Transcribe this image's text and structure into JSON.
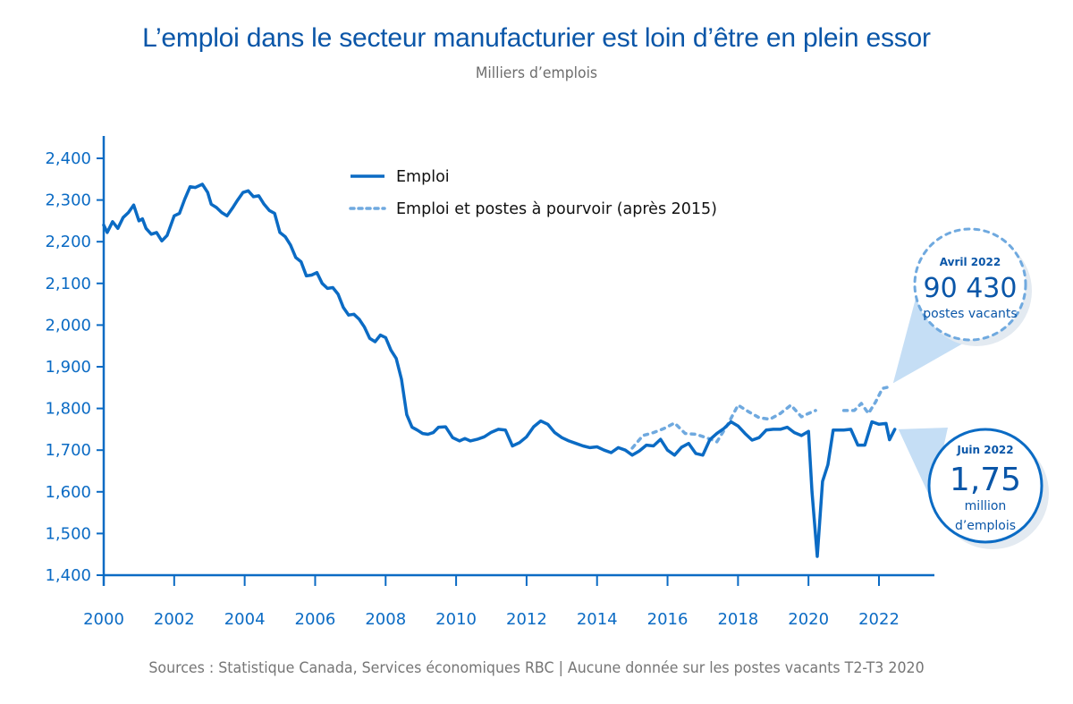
{
  "header": {
    "title": "L’emploi dans le secteur manufacturier est loin d’être en plein essor",
    "subtitle": "Milliers d’emplois"
  },
  "footer": {
    "source": "Sources : Statistique Canada, Services économiques RBC | Aucune donnée sur les postes vacants T2-T3 2020"
  },
  "colors": {
    "primary": "#0b6bc4",
    "dotted": "#6fa9df",
    "callout_fill": "#c5def5",
    "title": "#0a56a8"
  },
  "callouts": [
    {
      "id": "vacancies",
      "label": "Avril 2022",
      "value": "90 430",
      "caption": "postes vacants",
      "caption2": ""
    },
    {
      "id": "employment",
      "label": "Juin 2022",
      "value": "1,75",
      "caption": "million",
      "caption2": "d’emplois"
    }
  ],
  "chart_data": {
    "type": "line",
    "title": "L’emploi dans le secteur manufacturier est loin d’être en plein essor",
    "subtitle": "Milliers d’emplois",
    "xlabel": "",
    "ylabel": "Milliers d’emplois",
    "xlim": [
      2000,
      2023.8
    ],
    "ylim": [
      1400,
      2450
    ],
    "grid": false,
    "legend_position": "top-center",
    "x_ticks": [
      2000,
      2002,
      2004,
      2006,
      2008,
      2010,
      2012,
      2014,
      2016,
      2018,
      2020,
      2022
    ],
    "x_tick_labels": [
      "2000",
      "2002",
      "2004",
      "2006",
      "2008",
      "2010",
      "2012",
      "2014",
      "2016",
      "2018",
      "2020",
      "2022"
    ],
    "y_ticks": [
      1400,
      1500,
      1600,
      1700,
      1800,
      1900,
      2000,
      2100,
      2200,
      2300,
      2400
    ],
    "y_tick_labels": [
      "1,400",
      "1,500",
      "1,600",
      "1,700",
      "1,800",
      "1,900",
      "2,000",
      "2,100",
      "2,200",
      "2,300",
      "2,400"
    ],
    "series": [
      {
        "name": "Emploi",
        "style": "solid",
        "x": [
          2000.0,
          2000.1,
          2000.25,
          2000.4,
          2000.55,
          2000.7,
          2000.85,
          2001.0,
          2001.1,
          2001.2,
          2001.35,
          2001.5,
          2001.65,
          2001.8,
          2002.0,
          2002.15,
          2002.3,
          2002.45,
          2002.6,
          2002.8,
          2002.95,
          2003.05,
          2003.2,
          2003.35,
          2003.5,
          2003.65,
          2003.8,
          2003.95,
          2004.1,
          2004.25,
          2004.4,
          2004.55,
          2004.7,
          2004.85,
          2005.0,
          2005.15,
          2005.3,
          2005.45,
          2005.6,
          2005.75,
          2005.9,
          2006.05,
          2006.2,
          2006.35,
          2006.5,
          2006.65,
          2006.8,
          2006.95,
          2007.1,
          2007.25,
          2007.4,
          2007.55,
          2007.7,
          2007.85,
          2008.0,
          2008.15,
          2008.3,
          2008.45,
          2008.6,
          2008.75,
          2008.9,
          2009.05,
          2009.2,
          2009.35,
          2009.5,
          2009.7,
          2009.9,
          2010.1,
          2010.25,
          2010.4,
          2010.6,
          2010.8,
          2011.0,
          2011.2,
          2011.4,
          2011.6,
          2011.8,
          2012.0,
          2012.2,
          2012.4,
          2012.6,
          2012.8,
          2013.0,
          2013.2,
          2013.4,
          2013.6,
          2013.8,
          2014.0,
          2014.2,
          2014.4,
          2014.6,
          2014.8,
          2015.0,
          2015.2,
          2015.4,
          2015.6,
          2015.8,
          2016.0,
          2016.2,
          2016.4,
          2016.6,
          2016.8,
          2017.0,
          2017.2,
          2017.4,
          2017.6,
          2017.8,
          2018.0,
          2018.2,
          2018.4,
          2018.6,
          2018.8,
          2019.0,
          2019.2,
          2019.4,
          2019.6,
          2019.8,
          2020.0,
          2020.1,
          2020.25,
          2020.4,
          2020.55,
          2020.7,
          2020.85,
          2021.0,
          2021.2,
          2021.4,
          2021.6,
          2021.8,
          2022.0,
          2022.2,
          2022.3,
          2022.45
        ],
        "values": [
          2240,
          2222,
          2248,
          2232,
          2258,
          2270,
          2288,
          2250,
          2255,
          2232,
          2218,
          2222,
          2202,
          2215,
          2262,
          2268,
          2302,
          2332,
          2330,
          2338,
          2318,
          2290,
          2282,
          2270,
          2262,
          2280,
          2300,
          2318,
          2322,
          2308,
          2310,
          2290,
          2275,
          2268,
          2222,
          2212,
          2192,
          2162,
          2152,
          2118,
          2120,
          2126,
          2100,
          2088,
          2090,
          2074,
          2042,
          2024,
          2026,
          2014,
          1995,
          1968,
          1960,
          1976,
          1970,
          1940,
          1920,
          1870,
          1785,
          1755,
          1748,
          1740,
          1738,
          1742,
          1755,
          1756,
          1730,
          1722,
          1728,
          1722,
          1726,
          1732,
          1743,
          1750,
          1748,
          1710,
          1718,
          1732,
          1756,
          1770,
          1762,
          1742,
          1730,
          1722,
          1716,
          1710,
          1706,
          1708,
          1700,
          1694,
          1706,
          1700,
          1688,
          1698,
          1712,
          1710,
          1726,
          1700,
          1688,
          1707,
          1716,
          1692,
          1688,
          1725,
          1740,
          1752,
          1768,
          1758,
          1740,
          1724,
          1730,
          1748,
          1750,
          1750,
          1755,
          1742,
          1735,
          1745,
          1600,
          1445,
          1625,
          1665,
          1748,
          1748,
          1748,
          1750,
          1712,
          1712,
          1768,
          1762,
          1764,
          1725,
          1750
        ],
        "color": "#0b6bc4"
      },
      {
        "name": "Emploi et postes à pourvoir (après 2015)",
        "style": "dotted",
        "x": [
          2015.0,
          2015.3,
          2015.6,
          2015.9,
          2016.2,
          2016.5,
          2016.8,
          2017.1,
          2017.4,
          2017.7,
          2018.0,
          2018.3,
          2018.6,
          2018.9,
          2019.2,
          2019.5,
          2019.8,
          2020.0,
          2020.2,
          2021.0,
          2021.3,
          2021.5,
          2021.7,
          2021.9,
          2022.1,
          2022.3
        ],
        "values": [
          1705,
          1735,
          1742,
          1752,
          1765,
          1740,
          1738,
          1730,
          1720,
          1760,
          1808,
          1792,
          1778,
          1774,
          1788,
          1808,
          1780,
          1788,
          1795,
          1795,
          1795,
          1812,
          1788,
          1815,
          1848,
          1852
        ],
        "color": "#6fa9df"
      }
    ],
    "annotations": [
      {
        "text": "Avril 2022 — 90 430 postes vacants",
        "x": 2022.3,
        "y": 1852
      },
      {
        "text": "Juin 2022 — 1,75 million d’emplois",
        "x": 2022.45,
        "y": 1750
      },
      {
        "text": "Aucune donnée sur les postes vacants T2-T3 2020"
      }
    ]
  },
  "legend": {
    "items": [
      {
        "label": "Emploi",
        "style": "solid"
      },
      {
        "label": "Emploi et postes à pourvoir (après 2015)",
        "style": "dotted"
      }
    ]
  }
}
